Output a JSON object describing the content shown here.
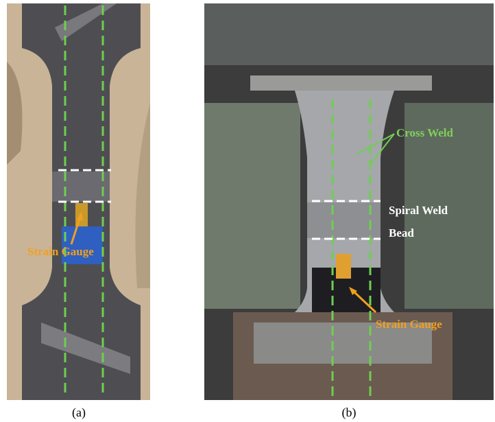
{
  "panels": [
    {
      "caption": "(a)",
      "labels": [
        "Strain Gauge"
      ]
    },
    {
      "caption": "(b)",
      "labels": [
        "Cross Weld",
        "Spiral Weld",
        "Bead",
        "Strain Gauge"
      ]
    }
  ]
}
